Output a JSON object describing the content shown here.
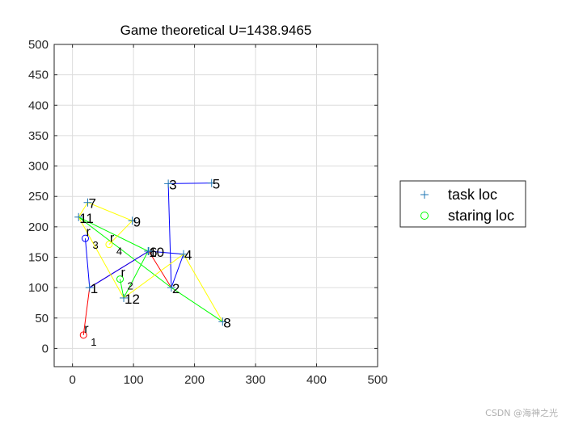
{
  "chart_data": {
    "type": "scatter",
    "title": "Game theoretical U=1438.9465",
    "xlabel": "",
    "ylabel": "",
    "xlim": [
      -30,
      500
    ],
    "ylim": [
      -30,
      500
    ],
    "xticks": [
      0,
      100,
      200,
      300,
      400,
      500
    ],
    "yticks": [
      0,
      50,
      100,
      150,
      200,
      250,
      300,
      350,
      400,
      450,
      500
    ],
    "grid": true,
    "legend_position": "right",
    "legend": [
      {
        "label": "task loc",
        "marker": "+",
        "color": "#1f77b4"
      },
      {
        "label": "staring loc",
        "marker": "o",
        "color": "#00ff00"
      }
    ],
    "tasks": [
      {
        "label": "1",
        "x": 28,
        "y": 100
      },
      {
        "label": "2",
        "x": 162,
        "y": 100
      },
      {
        "label": "3",
        "x": 157,
        "y": 271
      },
      {
        "label": "4",
        "x": 182,
        "y": 155
      },
      {
        "label": "5",
        "x": 228,
        "y": 272
      },
      {
        "label": "6",
        "x": 125,
        "y": 160
      },
      {
        "label": "7",
        "x": 25,
        "y": 240
      },
      {
        "label": "8",
        "x": 246,
        "y": 44
      },
      {
        "label": "9",
        "x": 98,
        "y": 210
      },
      {
        "label": "10",
        "x": 124,
        "y": 160
      },
      {
        "label": "11",
        "x": 10,
        "y": 216
      },
      {
        "label": "12",
        "x": 84,
        "y": 83
      }
    ],
    "robots": [
      {
        "label": "r",
        "sub": "1",
        "x": 18,
        "y": 22,
        "color": "#ff0000"
      },
      {
        "label": "r",
        "sub": "2",
        "x": 78,
        "y": 114,
        "color": "#00ff00"
      },
      {
        "label": "r",
        "sub": "3",
        "x": 21,
        "y": 181,
        "color": "#0000ff"
      },
      {
        "label": "r",
        "sub": "4",
        "x": 60,
        "y": 171,
        "color": "#ffff00"
      }
    ],
    "series": [
      {
        "color": "#ff0000",
        "points": [
          [
            18,
            22
          ],
          [
            28,
            100
          ],
          [
            125,
            160
          ],
          [
            162,
            100
          ]
        ]
      },
      {
        "color": "#00ff00",
        "points": [
          [
            78,
            114
          ],
          [
            84,
            83
          ],
          [
            124,
            160
          ],
          [
            10,
            216
          ],
          [
            162,
            100
          ],
          [
            246,
            44
          ]
        ]
      },
      {
        "color": "#0000ff",
        "points": [
          [
            21,
            181
          ],
          [
            28,
            100
          ],
          [
            125,
            160
          ],
          [
            182,
            155
          ],
          [
            162,
            100
          ],
          [
            157,
            271
          ],
          [
            228,
            272
          ]
        ]
      },
      {
        "color": "#ffff00",
        "points": [
          [
            60,
            171
          ],
          [
            98,
            210
          ],
          [
            25,
            240
          ],
          [
            10,
            216
          ],
          [
            84,
            83
          ],
          [
            182,
            155
          ],
          [
            246,
            44
          ]
        ]
      }
    ]
  },
  "watermark": "CSDN @海神之光"
}
